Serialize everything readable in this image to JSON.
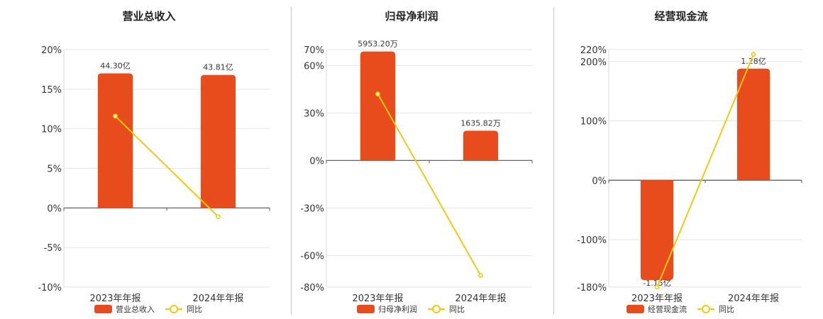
{
  "colors": {
    "bar": "#E84C1C",
    "line": "#F2C811",
    "grid": "#e6e6e6",
    "axis": "#555555",
    "divider": "#c8c8c8"
  },
  "chart_data": [
    {
      "type": "bar",
      "title": "营业总收入",
      "categories": [
        "2023年年报",
        "2024年年报"
      ],
      "series": [
        {
          "name": "营业总收入",
          "type": "bar",
          "values": [
            17.0,
            16.8
          ],
          "labels": [
            "44.30亿",
            "43.81亿"
          ]
        },
        {
          "name": "同比",
          "type": "line",
          "values": [
            11.6,
            -1.1
          ]
        }
      ],
      "yticks": [
        20,
        15,
        10,
        5,
        0,
        -5,
        -10
      ],
      "ytick_labels": [
        "20%",
        "15%",
        "10%",
        "5%",
        "0%",
        "-5%",
        "-10%"
      ],
      "ylim": [
        -10,
        20
      ],
      "grid": true,
      "legend": "bottom"
    },
    {
      "type": "bar",
      "title": "归母净利润",
      "categories": [
        "2023年年报",
        "2024年年报"
      ],
      "series": [
        {
          "name": "归母净利润",
          "type": "bar",
          "values": [
            68.8,
            18.8
          ],
          "labels": [
            "5953.20万",
            "1635.82万"
          ]
        },
        {
          "name": "同比",
          "type": "line",
          "values": [
            42.0,
            -72.6
          ]
        }
      ],
      "yticks": [
        70,
        60,
        30,
        0,
        -30,
        -60,
        -80
      ],
      "ytick_labels": [
        "70%",
        "60%",
        "30%",
        "0%",
        "-30%",
        "-60%",
        "-80%"
      ],
      "ylim": [
        -80,
        70
      ],
      "grid": true,
      "legend": "bottom"
    },
    {
      "type": "bar",
      "title": "经营现金流",
      "categories": [
        "2023年年报",
        "2024年年报"
      ],
      "series": [
        {
          "name": "经营现金流",
          "type": "bar",
          "values": [
            -168,
            188
          ],
          "labels": [
            "-1.15亿",
            "1.28亿"
          ]
        },
        {
          "name": "同比",
          "type": "line",
          "values": [
            -180,
            212
          ]
        }
      ],
      "yticks": [
        220,
        200,
        100,
        0,
        -100,
        -180
      ],
      "ytick_labels": [
        "220%",
        "200%",
        "100%",
        "0%",
        "-100%",
        "-180%"
      ],
      "ylim": [
        -180,
        220
      ],
      "grid": true,
      "legend": "bottom"
    }
  ]
}
